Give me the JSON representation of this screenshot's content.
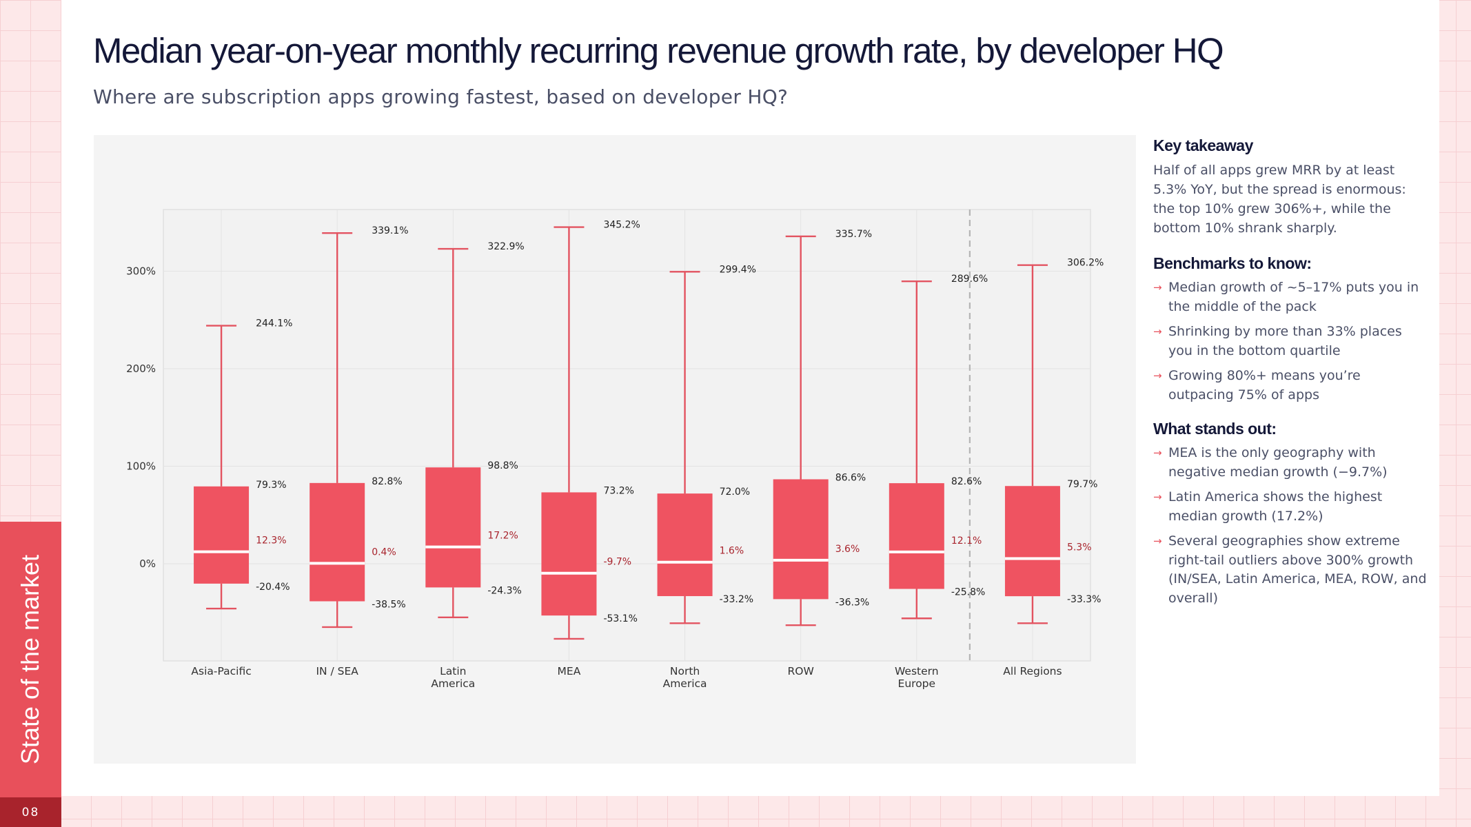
{
  "page": {
    "title": "Median year-on-year monthly recurring revenue growth rate, by developer HQ",
    "subtitle": "Where are subscription apps growing fastest, based on developer HQ?",
    "section_label": "State of the market",
    "page_number": "08"
  },
  "colors": {
    "box": "#ef5361",
    "whisker": "#e35360",
    "median_label": "#a8232c",
    "accent": "#e8505b",
    "title": "#141838"
  },
  "sidebar": {
    "key_takeaway": {
      "heading": "Key takeaway",
      "text": "Half of all apps grew MRR by at least 5.3% YoY, but the spread is enormous: the top 10% grew 306%+, while the bottom 10% shrank sharply."
    },
    "benchmarks": {
      "heading": "Benchmarks to know:",
      "items": [
        "Median growth of ~5–17% puts you in the middle of the pack",
        "Shrinking by more than 33% places you in the bottom quartile",
        "Growing 80%+ means you’re outpacing 75% of apps"
      ]
    },
    "stands_out": {
      "heading": "What stands out:",
      "items": [
        "MEA is the only geography with negative median growth (−9.7%)",
        "Latin America shows the highest median growth (17.2%)",
        "Several geographies show extreme right-tail outliers above 300% growth (IN/SEA, Latin America, MEA, ROW, and overall)"
      ]
    }
  },
  "chart_data": {
    "type": "boxplot",
    "title": "",
    "xlabel": "",
    "ylabel": "",
    "ylim": [
      -100,
      365
    ],
    "y_ticks": [
      0,
      100,
      200,
      300
    ],
    "y_tick_labels": [
      "0%",
      "100%",
      "200%",
      "300%"
    ],
    "grid": true,
    "series": [
      {
        "category": [
          "Asia-Pacific"
        ],
        "whisker_low": -46,
        "q1": -20.4,
        "median": 12.3,
        "q3": 79.3,
        "whisker_high": 244.1,
        "labels": {
          "whisker_high": "244.1%",
          "q3": "79.3%",
          "median": "12.3%",
          "q1": "-20.4%"
        }
      },
      {
        "category": [
          "IN / SEA"
        ],
        "whisker_low": -65,
        "q1": -38.5,
        "median": 0.4,
        "q3": 82.8,
        "whisker_high": 339.1,
        "labels": {
          "whisker_high": "339.1%",
          "q3": "82.8%",
          "median": "0.4%",
          "q1": "-38.5%"
        }
      },
      {
        "category": [
          "Latin",
          "America"
        ],
        "whisker_low": -55,
        "q1": -24.3,
        "median": 17.2,
        "q3": 98.8,
        "whisker_high": 322.9,
        "labels": {
          "whisker_high": "322.9%",
          "q3": "98.8%",
          "median": "17.2%",
          "q1": "-24.3%"
        }
      },
      {
        "category": [
          "MEA"
        ],
        "whisker_low": -77,
        "q1": -53.1,
        "median": -9.7,
        "q3": 73.2,
        "whisker_high": 345.2,
        "labels": {
          "whisker_high": "345.2%",
          "q3": "73.2%",
          "median": "-9.7%",
          "q1": "-53.1%"
        }
      },
      {
        "category": [
          "North",
          "America"
        ],
        "whisker_low": -61,
        "q1": -33.2,
        "median": 1.6,
        "q3": 72.0,
        "whisker_high": 299.4,
        "labels": {
          "whisker_high": "299.4%",
          "q3": "72.0%",
          "median": "1.6%",
          "q1": "-33.2%"
        }
      },
      {
        "category": [
          "ROW"
        ],
        "whisker_low": -63,
        "q1": -36.3,
        "median": 3.6,
        "q3": 86.6,
        "whisker_high": 335.7,
        "labels": {
          "whisker_high": "335.7%",
          "q3": "86.6%",
          "median": "3.6%",
          "q1": "-36.3%"
        }
      },
      {
        "category": [
          "Western",
          "Europe"
        ],
        "whisker_low": -56,
        "q1": -25.8,
        "median": 12.1,
        "q3": 82.6,
        "whisker_high": 289.6,
        "labels": {
          "whisker_high": "289.6%",
          "q3": "82.6%",
          "median": "12.1%",
          "q1": "-25.8%"
        }
      },
      {
        "category": [
          "All Regions"
        ],
        "whisker_low": -61,
        "q1": -33.3,
        "median": 5.3,
        "q3": 79.7,
        "whisker_high": 306.2,
        "labels": {
          "whisker_high": "306.2%",
          "q3": "79.7%",
          "median": "5.3%",
          "q1": "-33.3%"
        }
      }
    ],
    "separator_after_index": 6
  }
}
